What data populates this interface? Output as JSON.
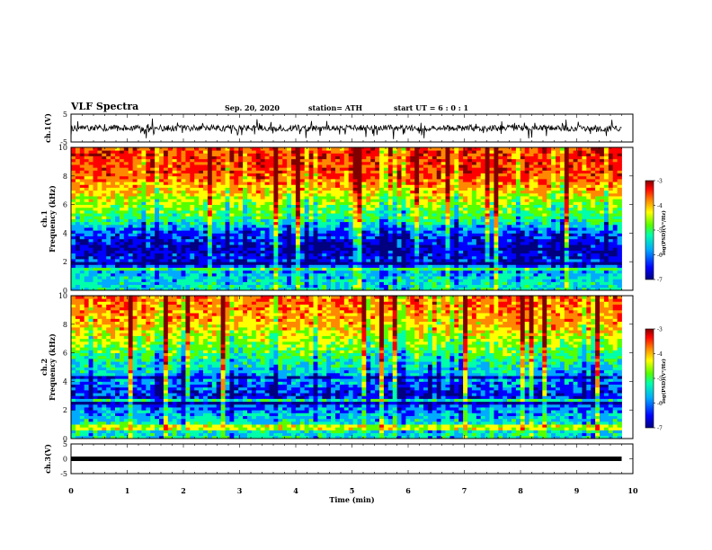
{
  "header": {
    "title": "VLF Spectra",
    "date": "Sep. 20, 2020",
    "station": "station= ATH",
    "start": "start  UT =   6 : 0  : 1"
  },
  "chart_data": [
    {
      "type": "line",
      "panel": "waveform-ch1",
      "ylabel": "ch.1(V)",
      "ylim": [
        -5,
        5
      ],
      "yticks": [
        "5",
        "-5"
      ],
      "xlim": [
        0,
        10
      ],
      "data_end_min": 9.8,
      "description_level": "noisy trace around 0 V with dips to about -2 V"
    },
    {
      "type": "heatmap",
      "panel": "spectrogram-ch1",
      "ylabel": "ch.1\nFrequency (kHz)",
      "ylim": [
        0,
        10
      ],
      "yticks": [
        "0",
        "2",
        "4",
        "6",
        "8",
        "10"
      ],
      "xlim": [
        0,
        10
      ],
      "data_end_min": 9.8,
      "colorbar": {
        "label": "log(PSD)(V²/Hz)",
        "min": -7,
        "max": -3,
        "ticks": [
          "-3",
          "-4",
          "-5",
          "-6",
          "-7"
        ]
      },
      "profile_khz": [
        0,
        1,
        2,
        3,
        4,
        5,
        6,
        7,
        8,
        9,
        10
      ],
      "profile_level": [
        -5.5,
        -5.7,
        -6.3,
        -6.6,
        -6.2,
        -5.3,
        -4.9,
        -4.4,
        -3.9,
        -3.8,
        -3.8
      ]
    },
    {
      "type": "heatmap",
      "panel": "spectrogram-ch2",
      "ylabel": "ch.2\nFrequency (kHz)",
      "ylim": [
        0,
        10
      ],
      "yticks": [
        "0",
        "2",
        "4",
        "6",
        "8",
        "10"
      ],
      "xlim": [
        0,
        10
      ],
      "data_end_min": 9.8,
      "colorbar": {
        "label": "log(PSD)(V²/Hz)",
        "min": -7,
        "max": -3,
        "ticks": [
          "-3",
          "-4",
          "-5",
          "-6",
          "-7"
        ]
      },
      "profile_khz": [
        0,
        1,
        2,
        3,
        4,
        5,
        6,
        7,
        8,
        9,
        10
      ],
      "profile_level": [
        -5.6,
        -5.5,
        -6.0,
        -6.4,
        -6.0,
        -5.6,
        -5.2,
        -4.8,
        -4.3,
        -4.1,
        -4.0
      ]
    },
    {
      "type": "line",
      "panel": "waveform-ch3",
      "ylabel": "ch.3(V)",
      "ylim": [
        -5,
        5
      ],
      "yticks": [
        "5",
        "0",
        "-5"
      ],
      "xlim": [
        0,
        10
      ],
      "data_end_min": 9.8,
      "level_v": 0
    }
  ],
  "xaxis": {
    "label": "Time (min)",
    "ticks": [
      "0",
      "1",
      "2",
      "3",
      "4",
      "5",
      "6",
      "7",
      "8",
      "9",
      "10"
    ]
  },
  "colors": {
    "colormap": [
      "#000080",
      "#0000ff",
      "#00aaff",
      "#00ffaa",
      "#55ff00",
      "#ffff00",
      "#ff8800",
      "#ff0000",
      "#800000"
    ]
  }
}
